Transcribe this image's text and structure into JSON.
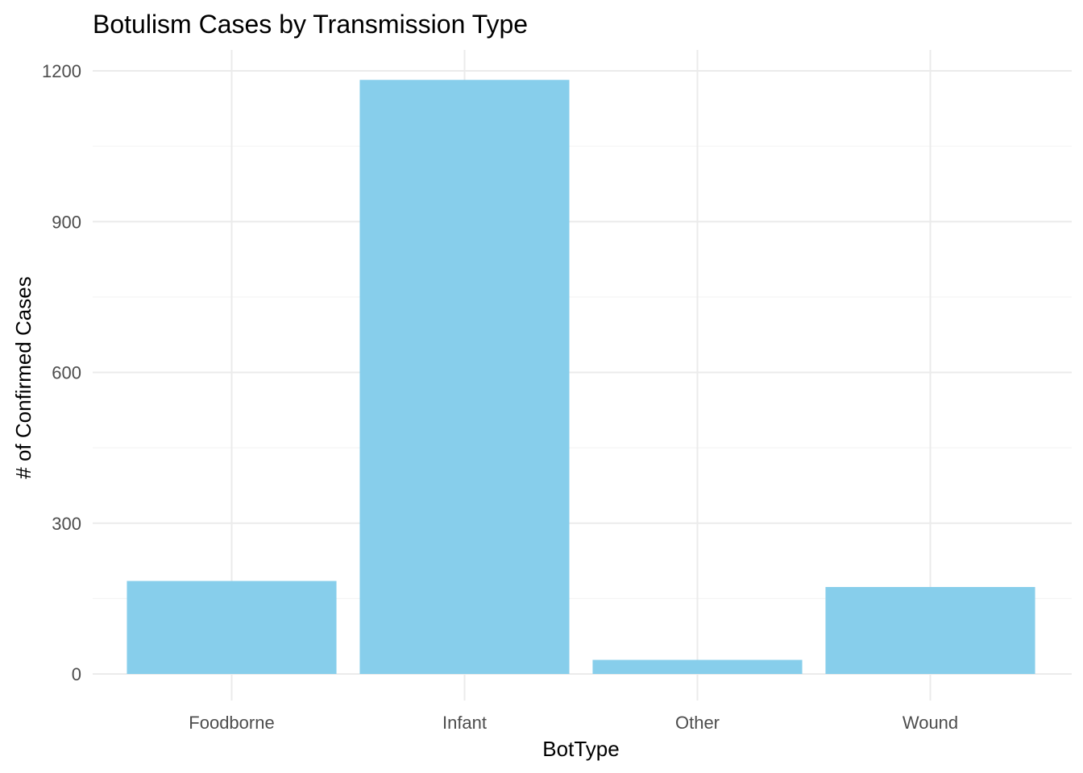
{
  "chart_data": {
    "type": "bar",
    "title": "Botulism Cases by Transmission Type",
    "xlabel": "BotType",
    "ylabel": "# of Confirmed Cases",
    "categories": [
      "Foodborne",
      "Infant",
      "Other",
      "Wound"
    ],
    "values": [
      185,
      1182,
      28,
      173
    ],
    "ylim": [
      0,
      1200
    ],
    "yticks": [
      "0",
      "300",
      "600",
      "900",
      "1200"
    ],
    "grid": true,
    "legend": "none",
    "bar_color": "#87CEEB"
  }
}
